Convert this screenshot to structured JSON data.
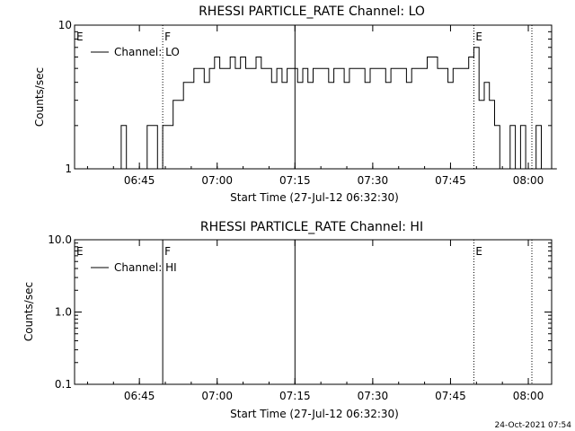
{
  "footer_timestamp": "24-Oct-2021 07:54",
  "chart_data": [
    {
      "type": "line",
      "title": "RHESSI PARTICLE_RATE Channel: LO",
      "xlabel": "Start Time (27-Jul-12 06:32:30)",
      "ylabel": "Counts/sec",
      "yscale": "log",
      "ylim": [
        1,
        10
      ],
      "xlim_minutes": [
        0,
        92
      ],
      "y_tick_labels": [
        "1",
        "10"
      ],
      "x_tick_labels": [
        "06:45",
        "07:00",
        "07:15",
        "07:30",
        "07:45",
        "08:00"
      ],
      "x_tick_minutes": [
        12.5,
        27.5,
        42.5,
        57.5,
        72.5,
        87.5
      ],
      "grid": false,
      "legend": "top-left",
      "series": [
        {
          "name": "Channel: LO",
          "x_minutes": [
            0,
            1,
            2,
            3,
            4,
            5,
            6,
            7,
            8,
            9,
            10,
            11,
            12,
            13,
            14,
            15,
            16,
            17,
            18,
            19,
            20,
            21,
            22,
            23,
            24,
            25,
            26,
            27,
            28,
            29,
            30,
            31,
            32,
            33,
            34,
            35,
            36,
            37,
            38,
            39,
            40,
            41,
            42,
            43,
            44,
            45,
            46,
            47,
            48,
            49,
            50,
            51,
            52,
            53,
            54,
            55,
            56,
            57,
            58,
            59,
            60,
            61,
            62,
            63,
            64,
            65,
            66,
            67,
            68,
            69,
            70,
            71,
            72,
            73,
            74,
            75,
            76,
            77,
            78,
            79,
            80,
            81,
            82,
            83,
            84,
            85,
            86,
            87,
            88,
            89,
            90,
            91,
            92
          ],
          "values": [
            1,
            1,
            1,
            1,
            1,
            1,
            1,
            1,
            1,
            2,
            1,
            1,
            1,
            1,
            2,
            2,
            1,
            2,
            2,
            3,
            3,
            4,
            4,
            5,
            5,
            4,
            5,
            6,
            5,
            5,
            6,
            5,
            6,
            5,
            5,
            6,
            5,
            5,
            4,
            5,
            4,
            5,
            5,
            4,
            5,
            4,
            5,
            5,
            5,
            4,
            5,
            5,
            4,
            5,
            5,
            5,
            4,
            5,
            5,
            5,
            4,
            5,
            5,
            5,
            4,
            5,
            5,
            5,
            6,
            6,
            5,
            5,
            4,
            5,
            5,
            5,
            6,
            7,
            3,
            4,
            3,
            2,
            1,
            1,
            2,
            1,
            2,
            1,
            1,
            2,
            1,
            1,
            1
          ]
        }
      ],
      "markers": [
        {
          "label": "E",
          "minute": 0,
          "style": "none"
        },
        {
          "label": "F",
          "minute": 17,
          "style": "dotted"
        },
        {
          "label": "",
          "minute": 42.5,
          "style": "solid"
        },
        {
          "label": "E",
          "minute": 77,
          "style": "dotted"
        },
        {
          "label": "",
          "minute": 94,
          "style": "dotted"
        }
      ]
    },
    {
      "type": "line",
      "title": "RHESSI PARTICLE_RATE Channel: HI",
      "xlabel": "Start Time (27-Jul-12 06:32:30)",
      "ylabel": "Counts/sec",
      "yscale": "log",
      "ylim": [
        0.1,
        10
      ],
      "xlim_minutes": [
        0,
        92
      ],
      "y_tick_labels": [
        "0.1",
        "1.0",
        "10.0"
      ],
      "x_tick_labels": [
        "06:45",
        "07:00",
        "07:15",
        "07:30",
        "07:45",
        "08:00"
      ],
      "x_tick_minutes": [
        12.5,
        27.5,
        42.5,
        57.5,
        72.5,
        87.5
      ],
      "grid": false,
      "legend": "top-left",
      "series": [
        {
          "name": "Channel: HI",
          "x_minutes": [],
          "values": []
        }
      ],
      "markers": [
        {
          "label": "E",
          "minute": 0,
          "style": "none"
        },
        {
          "label": "F",
          "minute": 17,
          "style": "solid"
        },
        {
          "label": "",
          "minute": 42.5,
          "style": "solid"
        },
        {
          "label": "E",
          "minute": 77,
          "style": "dotted"
        },
        {
          "label": "",
          "minute": 94,
          "style": "dotted"
        }
      ]
    }
  ]
}
